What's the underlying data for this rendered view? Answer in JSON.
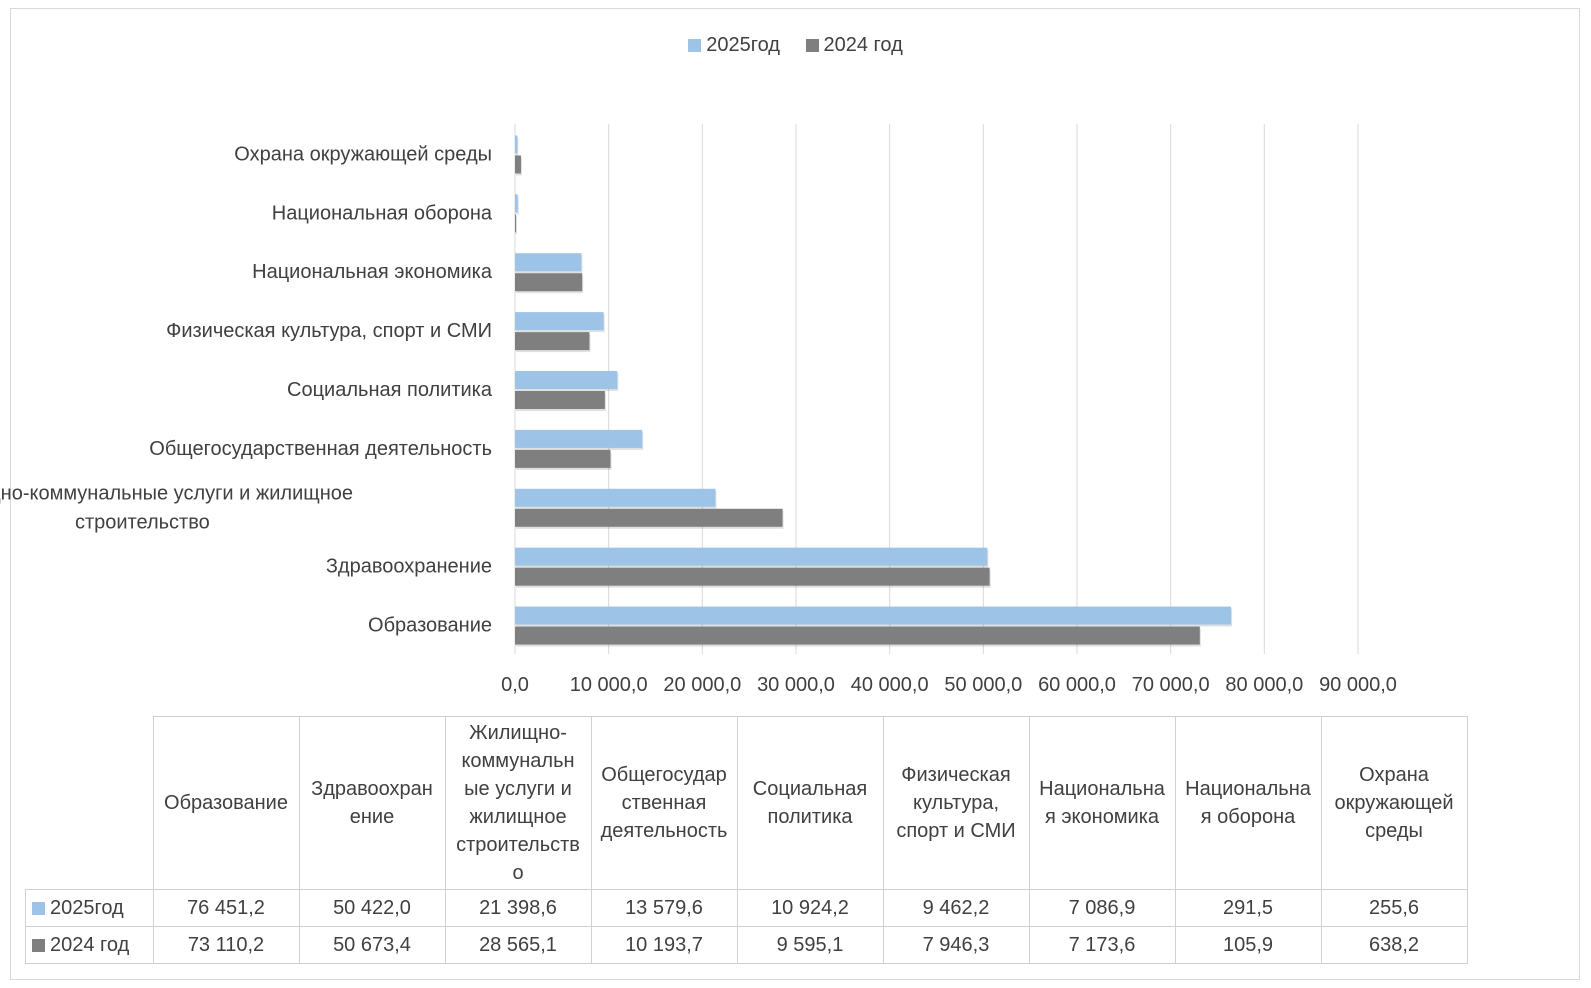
{
  "colors": {
    "series_2025": "#9dc3e6",
    "series_2024": "#7f7f7f",
    "grid": "#d9d9d9"
  },
  "chart_data": {
    "type": "bar",
    "orientation": "horizontal",
    "title": "",
    "xlabel": "",
    "ylabel": "",
    "xlim": [
      0,
      90000
    ],
    "x_ticks": [
      0,
      10000,
      20000,
      30000,
      40000,
      50000,
      60000,
      70000,
      80000,
      90000
    ],
    "x_tick_labels": [
      "0,0",
      "10 000,0",
      "20 000,0",
      "30 000,0",
      "40 000,0",
      "50 000,0",
      "60 000,0",
      "70 000,0",
      "80 000,0",
      "90 000,0"
    ],
    "grid": true,
    "legend_position": "top",
    "categories": [
      "Образование",
      "Здравоохранение",
      "Жилищно-коммунальные услуги и жилищное строительство",
      "Общегосударственная деятельность",
      "Социальная политика",
      "Физическая культура, спорт и СМИ",
      "Национальная экономика",
      "Национальная оборона",
      "Охрана окружающей среды"
    ],
    "axis_labels": [
      [
        "Образование"
      ],
      [
        "Здравоохранение"
      ],
      [
        "Жилищно-коммунальные услуги и жилищное",
        "строительство"
      ],
      [
        "Общегосударственная деятельность"
      ],
      [
        "Социальная политика"
      ],
      [
        "Физическая культура, спорт и СМИ"
      ],
      [
        "Национальная экономика"
      ],
      [
        "Национальная оборона"
      ],
      [
        "Охрана окружающей среды"
      ]
    ],
    "series": [
      {
        "name": "2025год",
        "values": [
          76451.2,
          50422.0,
          21398.6,
          13579.6,
          10924.2,
          9462.2,
          7086.9,
          291.5,
          255.6
        ]
      },
      {
        "name": "2024 год",
        "values": [
          73110.2,
          50673.4,
          28565.1,
          10193.7,
          9595.1,
          7946.3,
          7173.6,
          105.9,
          638.2
        ]
      }
    ],
    "table": {
      "headers": [
        [
          "Образование"
        ],
        [
          "Здравоохран",
          "ение"
        ],
        [
          "Жилищно-",
          "коммунальн",
          "ые услуги и",
          "жилищное",
          "строительств",
          "о"
        ],
        [
          "Общегосудар",
          "ственная",
          "деятельность"
        ],
        [
          "Социальная",
          "политика"
        ],
        [
          "Физическая",
          "культура,",
          "спорт и СМИ"
        ],
        [
          "Национальна",
          "я экономика"
        ],
        [
          "Национальна",
          "я оборона"
        ],
        [
          "Охрана",
          "окружающей",
          "среды"
        ]
      ],
      "rows": [
        {
          "label": "2025год",
          "values": [
            "76 451,2",
            "50 422,0",
            "21 398,6",
            "13 579,6",
            "10 924,2",
            "9 462,2",
            "7 086,9",
            "291,5",
            "255,6"
          ]
        },
        {
          "label": "2024 год",
          "values": [
            "73 110,2",
            "50 673,4",
            "28 565,1",
            "10 193,7",
            "9 595,1",
            "7 946,3",
            "7 173,6",
            "105,9",
            "638,2"
          ]
        }
      ]
    }
  }
}
